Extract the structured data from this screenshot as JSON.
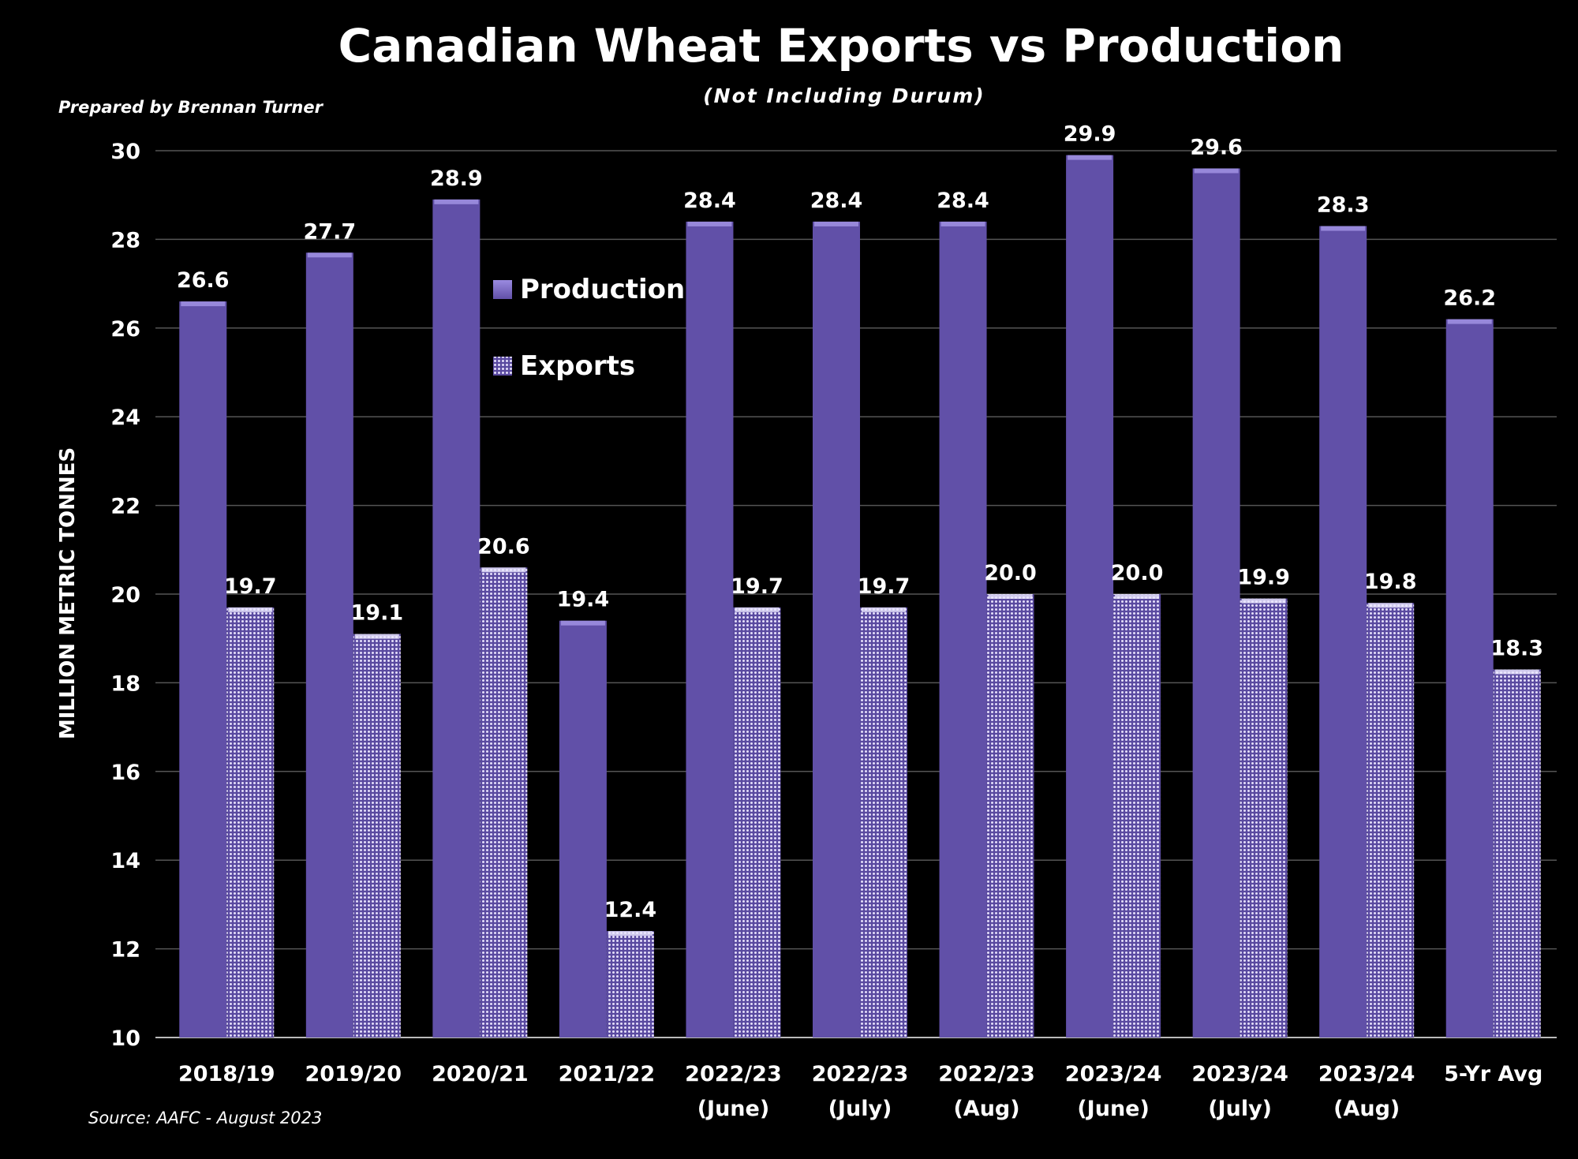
{
  "chart_data": {
    "type": "bar",
    "title": "Canadian Wheat Exports vs Production",
    "subtitle": "(Not Including Durum)",
    "credit": "Prepared by Brennan Turner",
    "source": "Source: AAFC -  August 2023",
    "ylabel": "MILLION METRIC TONNES",
    "xlabel": "",
    "ylim": [
      10,
      30
    ],
    "yticks": [
      10,
      12,
      14,
      16,
      18,
      20,
      22,
      24,
      26,
      28,
      30
    ],
    "grid": true,
    "legend_position": "top-left inside plot",
    "categories": [
      [
        "2018/19",
        ""
      ],
      [
        "2019/20",
        ""
      ],
      [
        "2020/21",
        ""
      ],
      [
        "2021/22",
        ""
      ],
      [
        "2022/23",
        "(June)"
      ],
      [
        "2022/23",
        "(July)"
      ],
      [
        "2022/23",
        "(Aug)"
      ],
      [
        "2023/24",
        "(June)"
      ],
      [
        "2023/24",
        "(July)"
      ],
      [
        "2023/24",
        "(Aug)"
      ],
      [
        "5-Yr Avg",
        ""
      ]
    ],
    "series": [
      {
        "name": "Production",
        "color": "#6150a8",
        "pattern": "solid",
        "values": [
          26.6,
          27.7,
          28.9,
          19.4,
          28.4,
          28.4,
          28.4,
          29.9,
          29.6,
          28.3,
          26.2
        ]
      },
      {
        "name": "Exports",
        "color": "#c8c0ee",
        "pattern": "dotted",
        "values": [
          19.7,
          19.1,
          20.6,
          12.4,
          19.7,
          19.7,
          20.0,
          20.0,
          19.9,
          19.8,
          18.3
        ]
      }
    ]
  }
}
